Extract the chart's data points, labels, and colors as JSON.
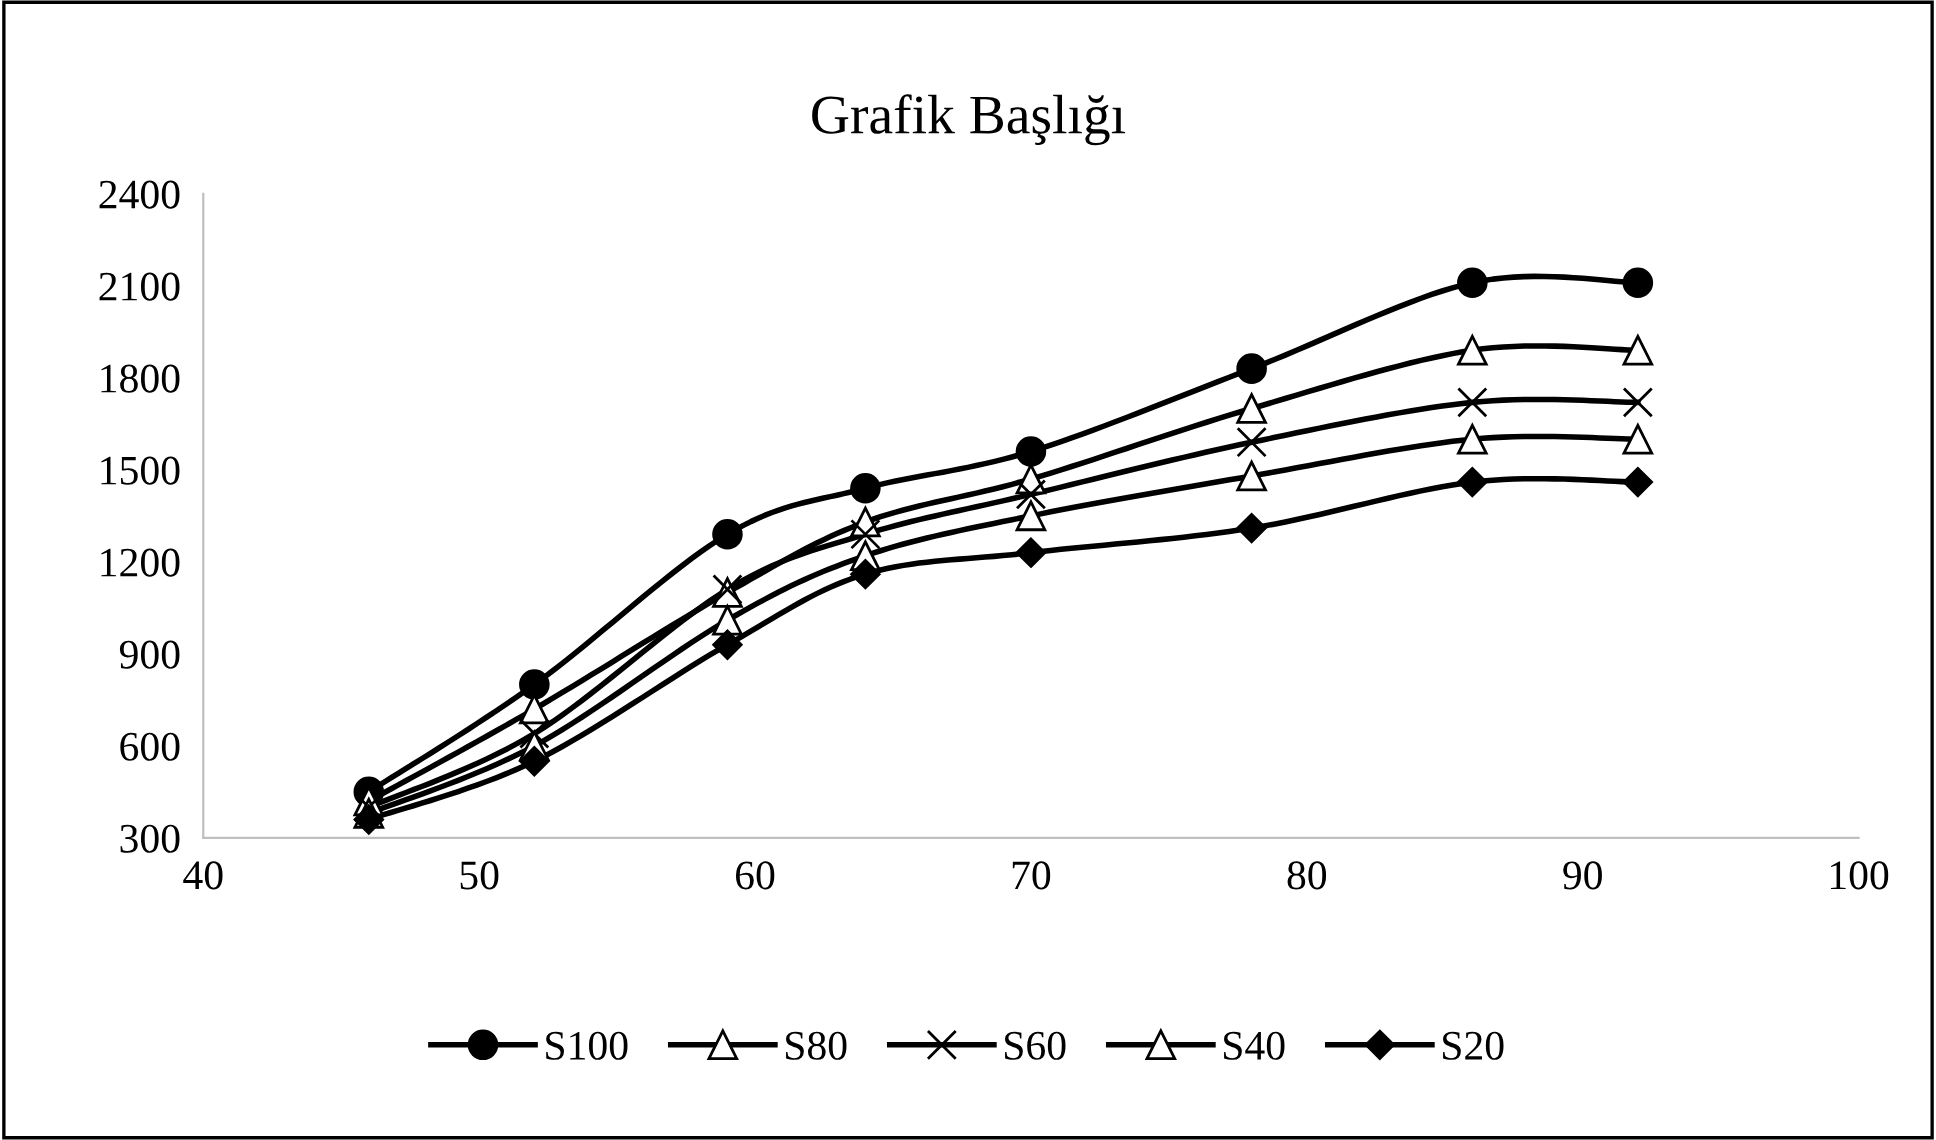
{
  "chart_data": {
    "type": "line",
    "title": "Grafik Başlığı",
    "x": [
      46,
      52,
      59,
      64,
      70,
      78,
      86,
      92
    ],
    "series": [
      {
        "name": "S100",
        "color": "#000000",
        "marker": "circle",
        "values": [
          450,
          800,
          1290,
          1440,
          1560,
          1830,
          2110,
          2110
        ]
      },
      {
        "name": "S80",
        "color": "#000000",
        "marker": "triangle",
        "values": [
          420,
          720,
          1100,
          1330,
          1470,
          1700,
          1890,
          1890
        ]
      },
      {
        "name": "S60",
        "color": "#000000",
        "marker": "cross",
        "values": [
          400,
          640,
          1110,
          1290,
          1420,
          1590,
          1720,
          1720
        ]
      },
      {
        "name": "S40",
        "color": "#000000",
        "marker": "triangle",
        "values": [
          380,
          600,
          1010,
          1220,
          1350,
          1480,
          1600,
          1600
        ]
      },
      {
        "name": "S20",
        "color": "#000000",
        "marker": "diamond",
        "values": [
          360,
          550,
          930,
          1160,
          1230,
          1310,
          1460,
          1460
        ]
      }
    ],
    "xlim": [
      40,
      100
    ],
    "xticks": [
      40,
      50,
      60,
      70,
      80,
      90,
      100
    ],
    "ylim": [
      300,
      2400
    ],
    "yticks": [
      300,
      600,
      900,
      1200,
      1500,
      1800,
      2100,
      2400
    ],
    "grid": false,
    "legend": "bottom",
    "line_style": "solid"
  }
}
